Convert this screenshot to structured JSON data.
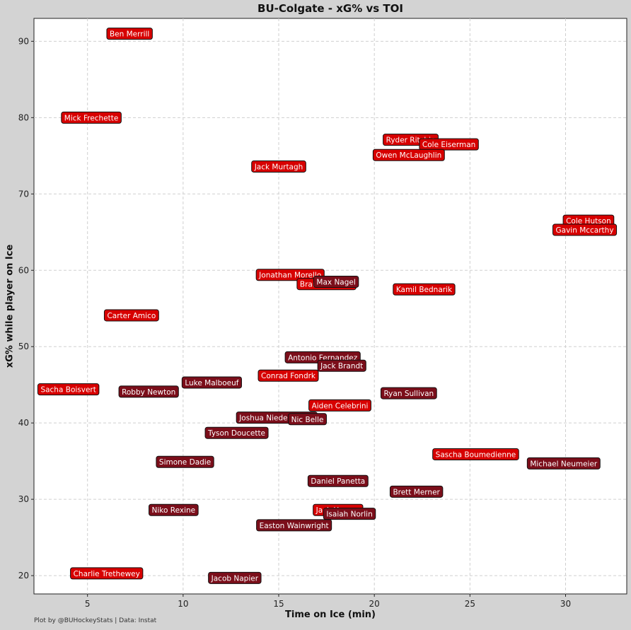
{
  "chart_data": {
    "type": "scatter",
    "title": "BU-Colgate - xG% vs TOI",
    "xlabel": "Time on Ice (min)",
    "ylabel": "xG% while player on Ice",
    "xlim": [
      2.2,
      33.2
    ],
    "ylim": [
      17.6,
      93.0
    ],
    "xticks": [
      5,
      10,
      15,
      20,
      25,
      30
    ],
    "yticks": [
      20,
      30,
      40,
      50,
      60,
      70,
      80,
      90
    ],
    "grid": true,
    "footer": "Plot by @BUHockeyStats | Data: Instat",
    "colors": {
      "bu": "#d70000",
      "colgate": "#7b0e1a",
      "border": "#111111"
    },
    "points": [
      {
        "name": "Ben Merrill",
        "x": 7.2,
        "y": 91.0,
        "team": "bu"
      },
      {
        "name": "Mick Frechette",
        "x": 5.2,
        "y": 80.0,
        "team": "bu"
      },
      {
        "name": "Ryder Ritchie",
        "x": 21.9,
        "y": 77.1,
        "team": "bu"
      },
      {
        "name": "Cole Eiserman",
        "x": 23.9,
        "y": 76.5,
        "team": "bu"
      },
      {
        "name": "Owen McLaughlin",
        "x": 21.8,
        "y": 75.1,
        "team": "bu"
      },
      {
        "name": "Jack Murtagh",
        "x": 15.0,
        "y": 73.6,
        "team": "bu"
      },
      {
        "name": "Cole Hutson",
        "x": 31.2,
        "y": 66.5,
        "team": "bu"
      },
      {
        "name": "Gavin Mccarthy",
        "x": 31.0,
        "y": 65.3,
        "team": "bu"
      },
      {
        "name": "Jonathan Morello",
        "x": 15.6,
        "y": 59.4,
        "team": "bu"
      },
      {
        "name": "Brandon Bussi",
        "x": 17.5,
        "y": 58.2,
        "team": "bu"
      },
      {
        "name": "Max Nagel",
        "x": 18.0,
        "y": 58.5,
        "team": "colgate"
      },
      {
        "name": "Kamil Bednarik",
        "x": 22.6,
        "y": 57.5,
        "team": "bu"
      },
      {
        "name": "Carter Amico",
        "x": 7.3,
        "y": 54.1,
        "team": "bu"
      },
      {
        "name": "Antonio Fernandez",
        "x": 17.3,
        "y": 48.6,
        "team": "colgate"
      },
      {
        "name": "Jack Brandt",
        "x": 18.3,
        "y": 47.5,
        "team": "colgate"
      },
      {
        "name": "Conrad Fondrk",
        "x": 15.5,
        "y": 46.2,
        "team": "bu"
      },
      {
        "name": "Luke Malboeuf",
        "x": 11.5,
        "y": 45.3,
        "team": "colgate"
      },
      {
        "name": "Sacha Boisvert",
        "x": 4.0,
        "y": 44.4,
        "team": "bu"
      },
      {
        "name": "Robby Newton",
        "x": 8.2,
        "y": 44.1,
        "team": "colgate"
      },
      {
        "name": "Ryan Sullivan",
        "x": 21.8,
        "y": 43.9,
        "team": "colgate"
      },
      {
        "name": "Aiden Celebrini",
        "x": 18.2,
        "y": 42.3,
        "team": "bu"
      },
      {
        "name": "Joshua Niedermayer",
        "x": 14.9,
        "y": 40.7,
        "team": "colgate"
      },
      {
        "name": "Nic Belle",
        "x": 16.5,
        "y": 40.5,
        "team": "colgate"
      },
      {
        "name": "Tyson Doucette",
        "x": 12.8,
        "y": 38.7,
        "team": "colgate"
      },
      {
        "name": "Sascha Boumedienne",
        "x": 25.3,
        "y": 35.9,
        "team": "bu"
      },
      {
        "name": "Michael Neumeier",
        "x": 29.9,
        "y": 34.7,
        "team": "colgate"
      },
      {
        "name": "Simone Dadie",
        "x": 10.1,
        "y": 34.9,
        "team": "colgate"
      },
      {
        "name": "Daniel Panetta",
        "x": 18.1,
        "y": 32.4,
        "team": "colgate"
      },
      {
        "name": "Brett Merner",
        "x": 22.2,
        "y": 31.0,
        "team": "colgate"
      },
      {
        "name": "Jack Harvey",
        "x": 18.1,
        "y": 28.6,
        "team": "bu"
      },
      {
        "name": "Niko Rexine",
        "x": 9.5,
        "y": 28.6,
        "team": "colgate"
      },
      {
        "name": "Isaiah Norlin",
        "x": 18.7,
        "y": 28.1,
        "team": "colgate"
      },
      {
        "name": "Easton Wainwright",
        "x": 15.8,
        "y": 26.6,
        "team": "colgate"
      },
      {
        "name": "Charlie Trethewey",
        "x": 6.0,
        "y": 20.3,
        "team": "bu"
      },
      {
        "name": "Jacob Napier",
        "x": 12.7,
        "y": 19.7,
        "team": "colgate"
      }
    ]
  }
}
